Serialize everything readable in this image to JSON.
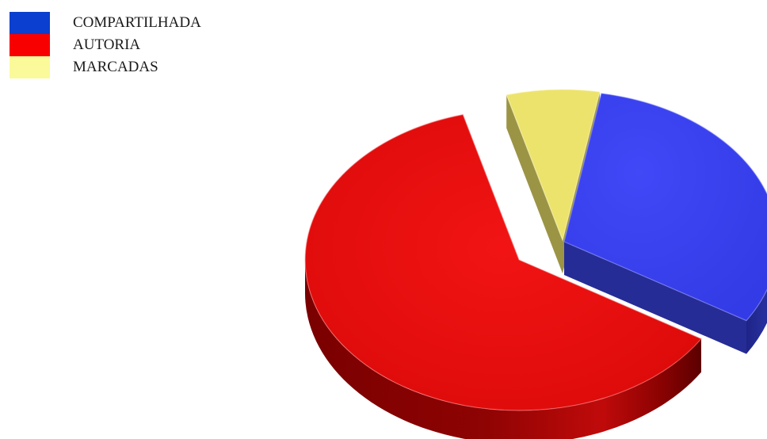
{
  "chart_data": {
    "type": "pie",
    "title": "",
    "categories": [
      "COMPARTILHADA",
      "AUTORIA",
      "MARCADAS"
    ],
    "values": [
      31,
      62,
      7
    ],
    "colors": [
      "#3d44f2",
      "#ee1111",
      "#f0e56a"
    ],
    "legend": {
      "position": "top-left",
      "swatch_colors": [
        "#0a3fd0",
        "#f80000",
        "#fafa9a"
      ]
    },
    "style": "3d-exploded"
  }
}
